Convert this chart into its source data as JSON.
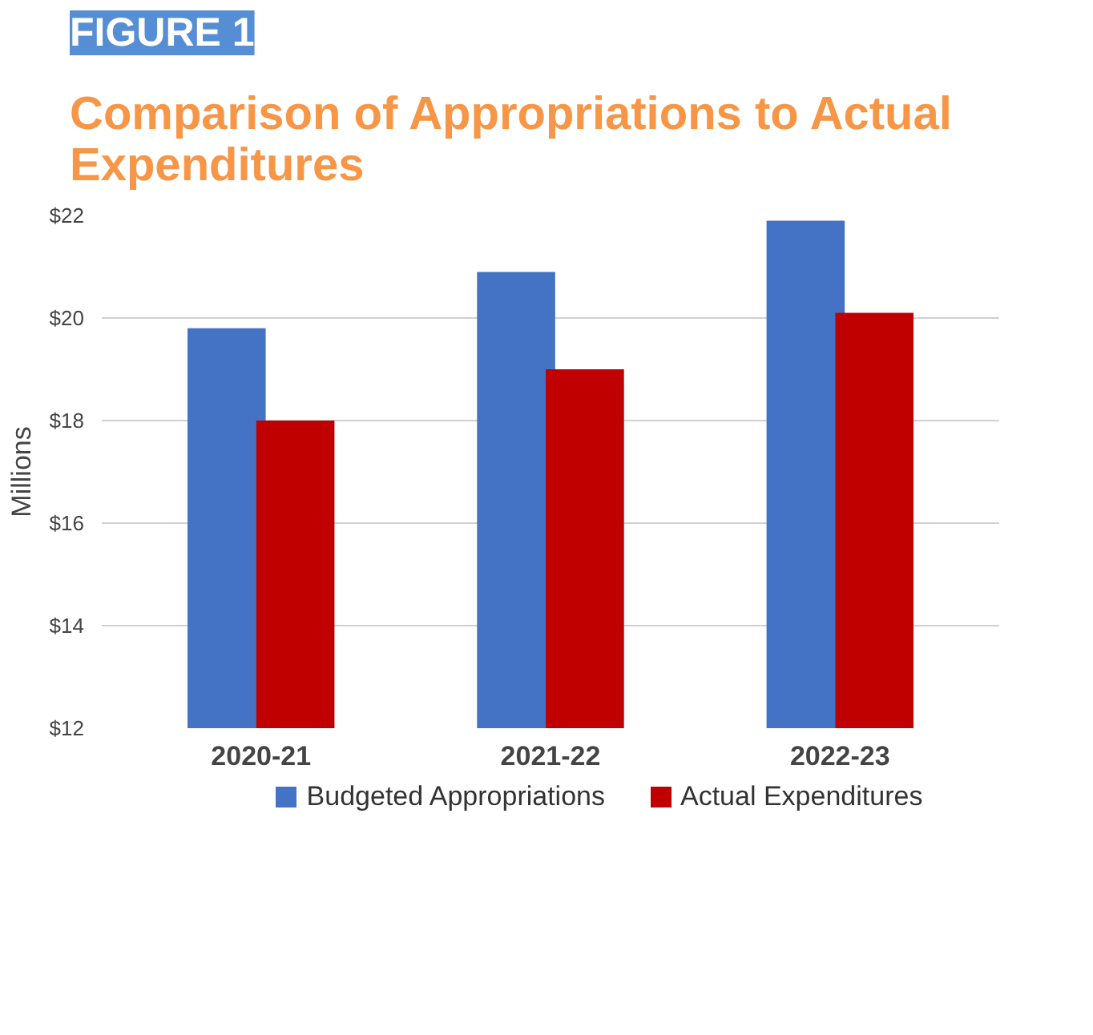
{
  "chart_data": {
    "type": "bar",
    "title": "Comparison of Appropriations to Actual Expenditures",
    "annotations": [
      "FIGURE 1"
    ],
    "ylabel": "Millions",
    "categories": [
      "2020-21",
      "2021-22",
      "2022-23"
    ],
    "series": [
      {
        "name": "Budgeted Appropriations",
        "color": "#4472c4",
        "values": [
          19.8,
          20.9,
          21.9
        ]
      },
      {
        "name": "Actual Expenditures",
        "color": "#c00000",
        "values": [
          18.0,
          19.0,
          20.1
        ]
      }
    ],
    "ylim": [
      12,
      22
    ],
    "yticks": [
      {
        "value": 12,
        "label": "$12"
      },
      {
        "value": 14,
        "label": "$14"
      },
      {
        "value": 16,
        "label": "$16"
      },
      {
        "value": 18,
        "label": "$18"
      },
      {
        "value": 20,
        "label": "$20"
      },
      {
        "value": 22,
        "label": "$22"
      }
    ],
    "grid": "y",
    "legend": "bottom"
  }
}
